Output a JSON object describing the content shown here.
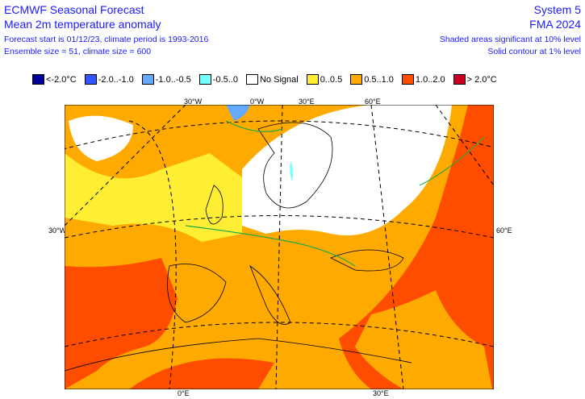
{
  "header": {
    "title": "ECMWF Seasonal Forecast",
    "subtitle": "Mean 2m temperature anomaly",
    "line3": "Forecast start is 01/12/23, climate period is 1993-2016",
    "line4": "Ensemble size = 51, climate size = 600",
    "system": "System 5",
    "period": "FMA 2024",
    "sig10": "Shaded areas significant at 10% level",
    "sig1": "Solid contour at 1% level"
  },
  "legend": [
    {
      "label": "<-2.0°C",
      "color": "#000099"
    },
    {
      "label": "-2.0..-1.0",
      "color": "#3355ff"
    },
    {
      "label": "-1.0..-0.5",
      "color": "#66aaff"
    },
    {
      "label": "-0.5..0",
      "color": "#77ffff"
    },
    {
      "label": "No Signal",
      "color": "#ffffff"
    },
    {
      "label": "0..0.5",
      "color": "#ffee33"
    },
    {
      "label": "0.5..1.0",
      "color": "#ffaa00"
    },
    {
      "label": "1.0..2.0",
      "color": "#ff4d00"
    },
    {
      "label": "> 2.0°C",
      "color": "#cc0022"
    }
  ],
  "axis_labels": {
    "top": [
      "30°W",
      "0°W",
      "30°E",
      "60°E"
    ],
    "left": "30°W",
    "right": "60°E",
    "bottom": [
      "0°E",
      "30°E"
    ]
  }
}
